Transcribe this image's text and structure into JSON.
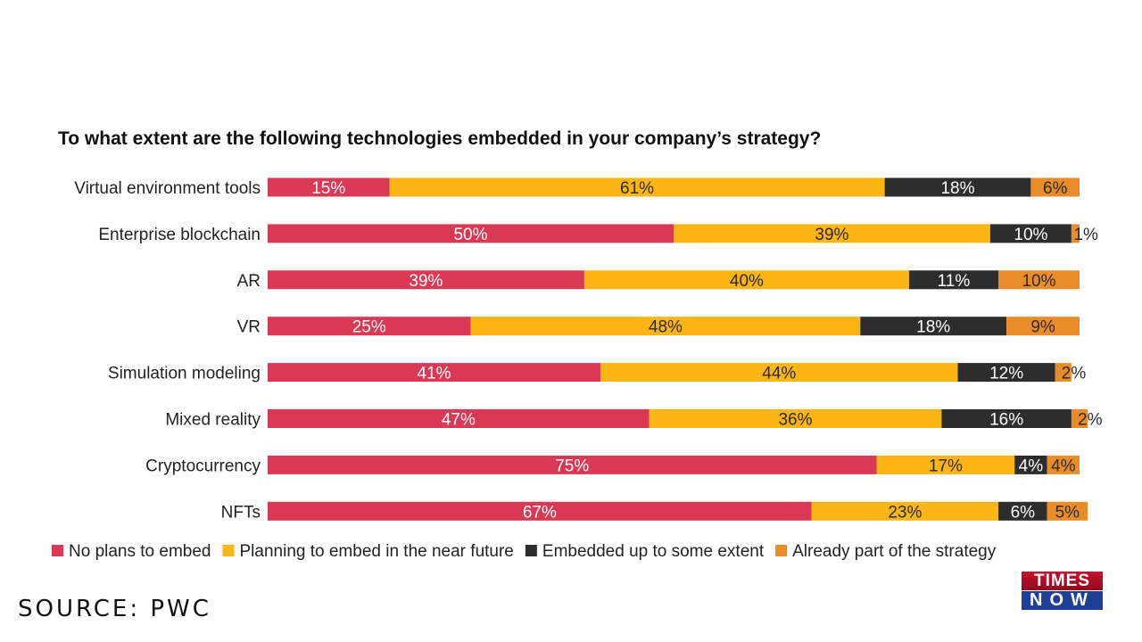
{
  "chart_data": {
    "type": "bar",
    "orientation": "horizontal",
    "stacked": true,
    "title": "To what extent are the following technologies embedded in your company’s strategy?",
    "categories": [
      "Virtual environment tools",
      "Enterprise blockchain",
      "AR",
      "VR",
      "Simulation modeling",
      "Mixed reality",
      "Cryptocurrency",
      "NFTs"
    ],
    "series": [
      {
        "name": "No plans to embed",
        "color": "#D93954",
        "label_color": "#ffffff",
        "values": [
          15,
          50,
          39,
          25,
          41,
          47,
          75,
          67
        ]
      },
      {
        "name": "Planning to embed in the near future",
        "color": "#FBB515",
        "label_color": "#2b2b2b",
        "values": [
          61,
          39,
          40,
          48,
          44,
          36,
          17,
          23
        ]
      },
      {
        "name": "Embedded up to some extent",
        "color": "#2D2D2D",
        "label_color": "#ffffff",
        "values": [
          18,
          10,
          11,
          18,
          12,
          16,
          4,
          6
        ]
      },
      {
        "name": "Already part of the strategy",
        "color": "#E98D2B",
        "label_color": "#2b2b2b",
        "values": [
          6,
          1,
          10,
          9,
          2,
          2,
          4,
          5
        ]
      }
    ],
    "value_suffix": "%",
    "xlim": [
      0,
      100
    ],
    "grid": false,
    "legend_position": "bottom"
  },
  "footer": {
    "source": "SOURCE: PWC",
    "logo_top": "TIMES",
    "logo_bottom": "NOW"
  }
}
